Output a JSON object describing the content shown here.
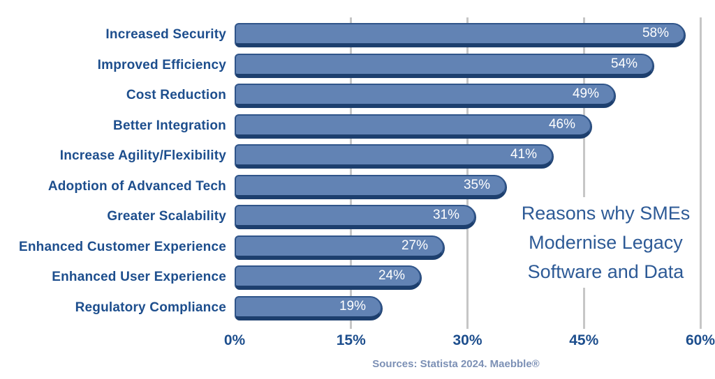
{
  "chart_data": {
    "type": "bar",
    "orientation": "horizontal",
    "title": "Reasons why SMEs Modernise Legacy Software and Data",
    "title_lines": [
      "Reasons why SMEs",
      "Modernise Legacy",
      "Software and Data"
    ],
    "categories": [
      "Increased Security",
      "Improved Efficiency",
      "Cost Reduction",
      "Better Integration",
      "Increase Agility/Flexibility",
      "Adoption of Advanced Tech",
      "Greater Scalability",
      "Enhanced Customer Experience",
      "Enhanced User Experience",
      "Regulatory Compliance"
    ],
    "values": [
      58,
      54,
      49,
      46,
      41,
      35,
      31,
      27,
      24,
      19
    ],
    "value_labels": [
      "58%",
      "54%",
      "49%",
      "46%",
      "41%",
      "35%",
      "31%",
      "27%",
      "24%",
      "19%"
    ],
    "x_ticks": [
      "0%",
      "15%",
      "30%",
      "45%",
      "60%"
    ],
    "xlim": [
      0,
      60
    ],
    "grid": "vertical gridlines at 15%, 30%, 45%, 60%",
    "legend": "none",
    "source": "Sources: Statista 2024. Maebble®",
    "colors": {
      "bar_fill": "#6283b4",
      "bar_border": "#30558a",
      "bar_shadow": "#1d3f6e",
      "label_text": "#1d4e8d",
      "axis_text": "#1d4e8d",
      "value_text": "#ffffff",
      "gridline": "#c6c6c6",
      "title_text": "#2d5a96",
      "source_text": "#7c90b5",
      "background": "#ffffff"
    }
  }
}
